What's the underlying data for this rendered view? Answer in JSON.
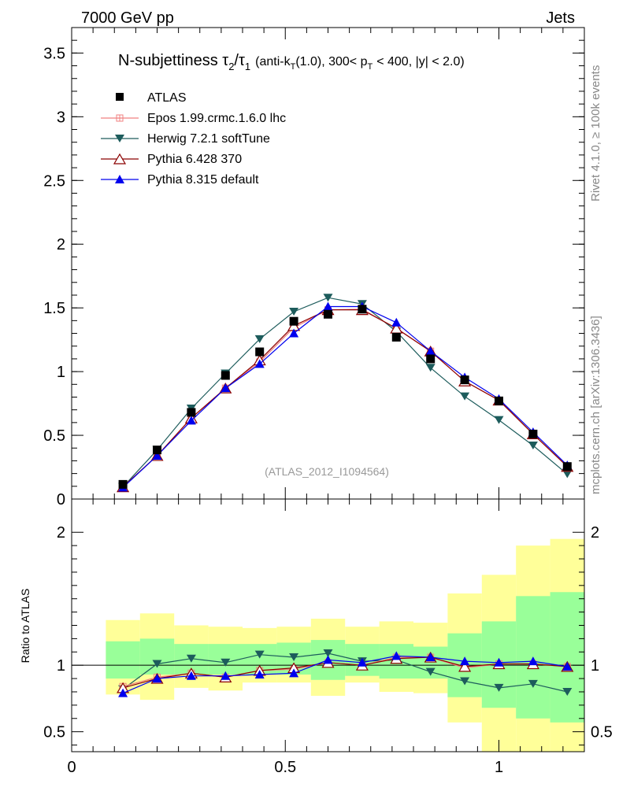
{
  "header": {
    "left": "7000 GeV pp",
    "right": "Jets",
    "side_rivet": "Rivet 4.1.0, ≥ 100k events",
    "side_mcplots": "mcplots.cern.ch [arXiv:1306.3436]"
  },
  "colors": {
    "data": "#000000",
    "epos": "#f08080",
    "herwig": "#1d5c5c",
    "pythia6": "#8b0000",
    "pythia8": "#0000ee",
    "band_inner": "#99ff99",
    "band_outer": "#ffff99",
    "watermark": "#999999"
  },
  "chart_data": [
    {
      "type": "line",
      "title": "N-subjettiness τ2/τ1",
      "title_parts": {
        "main": "N-subjettiness τ",
        "sub1": "2",
        "slash": "/τ",
        "sub2": "1",
        "cut1": "(anti-k",
        "cut_sub1": "T",
        "cut2": "(1.0), 300< p",
        "cut_sub2": "T",
        "cut3": "< 400, |y| < 2.0)"
      },
      "watermark": "(ATLAS_2012_I1094564)",
      "xlim": [
        0,
        1.2
      ],
      "ylim": [
        0,
        3.7
      ],
      "yticks": [
        0,
        0.5,
        1,
        1.5,
        2,
        2.5,
        3,
        3.5
      ],
      "ytick_labels": [
        "0",
        "0.5",
        "1",
        "1.5",
        "2",
        "2.5",
        "3",
        "3.5"
      ],
      "x": [
        0.12,
        0.2,
        0.28,
        0.36,
        0.44,
        0.52,
        0.6,
        0.68,
        0.76,
        0.84,
        0.92,
        1.0,
        1.08,
        1.16
      ],
      "x_edges": [
        0.08,
        0.16,
        0.24,
        0.32,
        0.4,
        0.48,
        0.56,
        0.64,
        0.72,
        0.8,
        0.88,
        0.96,
        1.04,
        1.12,
        1.2
      ],
      "legend_position": "top-left",
      "series": [
        {
          "key": "data",
          "name": "ATLAS",
          "marker": "square",
          "values": [
            0.115,
            0.385,
            0.68,
            0.97,
            1.155,
            1.395,
            1.45,
            1.49,
            1.27,
            1.1,
            0.935,
            0.77,
            0.51,
            0.255
          ]
        },
        {
          "key": "epos",
          "name": "Epos 1.99.crmc.1.6.0 lhc",
          "marker": "cross",
          "values": [
            0.095,
            0.34,
            0.635,
            0.87,
            1.075,
            1.345,
            1.485,
            1.49,
            1.34,
            1.16,
            0.925,
            0.775,
            0.51,
            0.255
          ]
        },
        {
          "key": "herwig",
          "name": "Herwig 7.2.1 softTune",
          "marker": "tri-down",
          "values": [
            0.095,
            0.385,
            0.71,
            0.985,
            1.255,
            1.47,
            1.58,
            1.53,
            1.315,
            1.03,
            0.805,
            0.62,
            0.42,
            0.195
          ]
        },
        {
          "key": "pythia6",
          "name": "Pythia 6.428 370",
          "marker": "tri-up-open",
          "values": [
            0.095,
            0.34,
            0.635,
            0.87,
            1.09,
            1.36,
            1.485,
            1.485,
            1.34,
            1.16,
            0.925,
            0.775,
            0.51,
            0.255
          ]
        },
        {
          "key": "pythia8",
          "name": "Pythia 8.315 default",
          "marker": "tri-up",
          "values": [
            0.09,
            0.34,
            0.615,
            0.87,
            1.06,
            1.3,
            1.51,
            1.51,
            1.385,
            1.16,
            0.955,
            0.785,
            0.525,
            0.265
          ]
        }
      ]
    },
    {
      "type": "line",
      "title": "Ratio to ATLAS",
      "ylabel": "Ratio to ATLAS",
      "xlim": [
        0,
        1.2
      ],
      "ylim": [
        0.35,
        2.25
      ],
      "xticks": [
        0,
        0.5,
        1
      ],
      "xtick_labels": [
        "0",
        "0.5",
        "1"
      ],
      "yticks": [
        0.5,
        1,
        2
      ],
      "ytick_labels": [
        "0.5",
        "1",
        "2"
      ],
      "band_inner": {
        "lo": [
          0.9,
          0.93,
          0.93,
          0.93,
          0.93,
          0.93,
          0.89,
          0.92,
          0.9,
          0.9,
          0.76,
          0.68,
          0.6,
          0.57
        ],
        "hi": [
          1.18,
          1.2,
          1.16,
          1.16,
          1.16,
          1.17,
          1.19,
          1.16,
          1.16,
          1.14,
          1.24,
          1.33,
          1.52,
          1.55
        ]
      },
      "band_outer": {
        "lo": [
          0.78,
          0.74,
          0.83,
          0.81,
          0.87,
          0.87,
          0.77,
          0.87,
          0.8,
          0.79,
          0.57,
          0.34,
          0.34,
          0.34
        ],
        "hi": [
          1.34,
          1.39,
          1.3,
          1.29,
          1.28,
          1.29,
          1.35,
          1.29,
          1.33,
          1.32,
          1.54,
          1.68,
          1.9,
          1.95
        ]
      },
      "series": [
        {
          "key": "epos",
          "name": "Epos 1.99.crmc.1.6.0 lhc",
          "values": [
            0.84,
            0.91,
            0.94,
            0.91,
            0.96,
            0.97,
            1.02,
            1.0,
            1.06,
            1.06,
            0.98,
            1.01,
            1.01,
            0.99
          ]
        },
        {
          "key": "herwig",
          "name": "Herwig 7.2.1 softTune",
          "values": [
            0.82,
            1.01,
            1.05,
            1.02,
            1.08,
            1.06,
            1.09,
            1.03,
            1.04,
            0.95,
            0.88,
            0.83,
            0.86,
            0.8
          ]
        },
        {
          "key": "pythia6",
          "name": "Pythia 6.428 370",
          "values": [
            0.83,
            0.9,
            0.94,
            0.91,
            0.96,
            0.98,
            1.02,
            1.0,
            1.05,
            1.06,
            0.99,
            1.01,
            1.01,
            0.99
          ]
        },
        {
          "key": "pythia8",
          "name": "Pythia 8.315 default",
          "values": [
            0.79,
            0.9,
            0.92,
            0.92,
            0.93,
            0.94,
            1.04,
            1.02,
            1.07,
            1.06,
            1.03,
            1.02,
            1.03,
            0.99
          ]
        }
      ]
    }
  ]
}
